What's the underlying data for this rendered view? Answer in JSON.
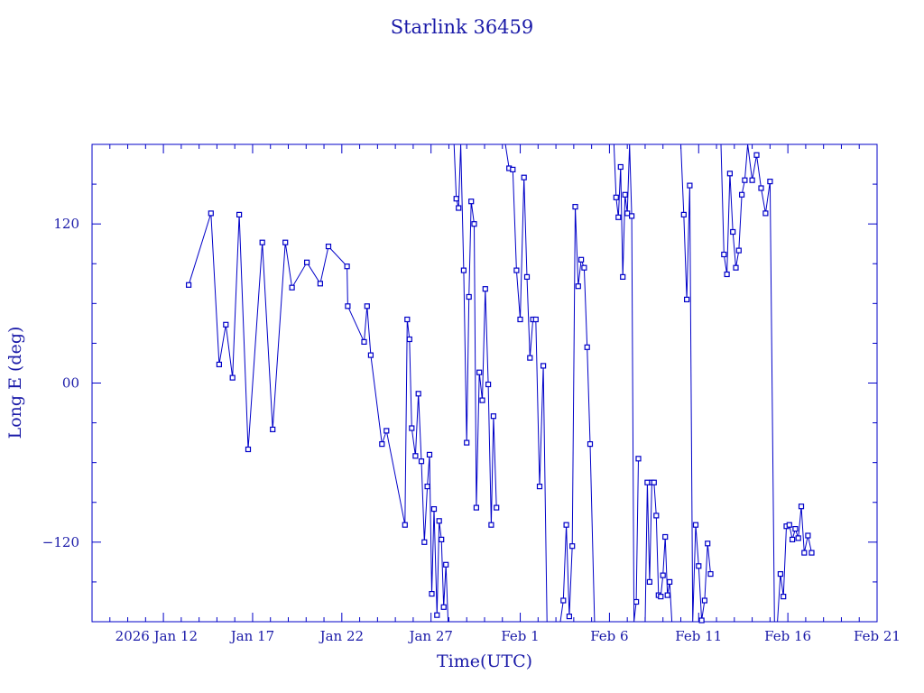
{
  "chart_data": {
    "type": "line",
    "title": "Starlink 36459",
    "xlabel": "Time(UTC)",
    "ylabel": "Long E (deg)",
    "xlim": [
      "2026-01-08",
      "2026-02-21"
    ],
    "ylim": [
      -180,
      180
    ],
    "x_tick_labels": [
      "2026 Jan 12",
      "Jan 17",
      "Jan 22",
      "Jan 27",
      "Feb  1",
      "Feb  6",
      "Feb 11",
      "Feb 16",
      "Feb 21"
    ],
    "y_tick_labels": [
      {
        "value": 120,
        "label": "120"
      },
      {
        "value": 0,
        "label": "00"
      },
      {
        "value": -120,
        "label": "−120"
      }
    ],
    "grid": false,
    "color": "#0000c8",
    "series": [
      {
        "x": [
          "2026-01-13 10:00",
          "2026-01-14 16:00",
          "2026-01-15 03:00",
          "2026-01-15 12:00",
          "2026-01-15 21:00",
          "2026-01-16 06:00",
          "2026-01-16 18:00",
          "2026-01-17 13:00",
          "2026-01-18 03:00",
          "2026-01-18 20:00",
          "2026-01-19 05:00",
          "2026-01-20 01:00",
          "2026-01-20 19:00",
          "2026-01-21 06:00",
          "2026-01-22 07:00",
          "2026-01-22 08:00",
          "2026-01-23 06:00",
          "2026-01-23 10:00",
          "2026-01-23 15:00",
          "2026-01-24 06:00",
          "2026-01-24 12:00",
          "2026-01-25 13:00",
          "2026-01-25 16:00",
          "2026-01-25 19:00",
          "2026-01-25 22:00",
          "2026-01-26 03:00",
          "2026-01-26 07:00",
          "2026-01-26 11:00",
          "2026-01-26 15:00",
          "2026-01-26 19:00",
          "2026-01-26 22:00",
          "2026-01-27 01:00",
          "2026-01-27 04:00",
          "2026-01-27 08:00",
          "2026-01-27 11:00",
          "2026-01-27 14:00",
          "2026-01-27 17:00",
          "2026-01-27 20:00",
          "2026-01-27 23:00"
        ],
        "y": [
          74,
          128,
          14,
          44,
          4,
          127,
          -50,
          106,
          -35,
          106,
          72,
          91,
          75,
          103,
          88,
          58,
          31,
          58,
          21,
          -46,
          -36,
          -107,
          48,
          33,
          -34,
          -55,
          -8,
          -59,
          -120,
          -78,
          -54,
          -159,
          -95,
          -175,
          -104,
          -118,
          -169,
          -137,
          -180
        ]
      },
      {
        "x": [
          "2026-01-28 07:00",
          "2026-01-28 10:00",
          "2026-01-28 13:00",
          "2026-01-28 16:00",
          "2026-01-28 20:00",
          "2026-01-29 00:00",
          "2026-01-29 03:00",
          "2026-01-29 06:00",
          "2026-01-29 10:00",
          "2026-01-29 13:00",
          "2026-01-29 17:00",
          "2026-01-29 21:00",
          "2026-01-30 01:00",
          "2026-01-30 05:00",
          "2026-01-30 09:00",
          "2026-01-30 12:00",
          "2026-01-30 16:00"
        ],
        "y": [
          180,
          139,
          132,
          180,
          85,
          -45,
          65,
          137,
          120,
          -94,
          8,
          -13,
          71,
          -1,
          -107,
          -25,
          -94
        ]
      },
      {
        "x": [
          "2026-01-31 04:00",
          "2026-01-31 09:00",
          "2026-01-31 14:00",
          "2026-01-31 19:00",
          "2026-02-01 00:00",
          "2026-02-01 05:00",
          "2026-02-01 09:00",
          "2026-02-01 13:00",
          "2026-02-01 17:00",
          "2026-02-01 21:00",
          "2026-02-02 02:00",
          "2026-02-02 07:00",
          "2026-02-02 12:00"
        ],
        "y": [
          180,
          162,
          161,
          85,
          48,
          155,
          80,
          19,
          48,
          48,
          -78,
          13,
          -180
        ]
      },
      {
        "x": [
          "2026-02-03 06:00",
          "2026-02-03 10:00",
          "2026-02-03 14:00",
          "2026-02-03 18:00",
          "2026-02-03 22:00",
          "2026-02-04 02:00",
          "2026-02-04 06:00",
          "2026-02-04 10:00",
          "2026-02-04 14:00",
          "2026-02-04 18:00",
          "2026-02-04 22:00",
          "2026-02-05 04:00"
        ],
        "y": [
          -180,
          -164,
          -107,
          -176,
          -123,
          133,
          73,
          93,
          87,
          27,
          -46,
          -180
        ]
      },
      {
        "x": [
          "2026-02-06 06:00",
          "2026-02-06 09:00",
          "2026-02-06 12:00",
          "2026-02-06 15:00",
          "2026-02-06 18:00",
          "2026-02-06 21:00",
          "2026-02-07 00:00",
          "2026-02-07 03:00",
          "2026-02-07 06:00",
          "2026-02-07 09:00",
          "2026-02-07 12:00",
          "2026-02-07 15:00"
        ],
        "y": [
          180,
          140,
          125,
          163,
          80,
          142,
          128,
          180,
          126,
          -180,
          -165,
          -57
        ]
      },
      {
        "x": [
          "2026-02-08 00:00",
          "2026-02-08 03:00",
          "2026-02-08 06:00",
          "2026-02-08 09:00",
          "2026-02-08 12:00",
          "2026-02-08 15:00",
          "2026-02-08 18:00",
          "2026-02-08 21:00",
          "2026-02-09 00:00",
          "2026-02-09 03:00",
          "2026-02-09 06:00",
          "2026-02-09 09:00",
          "2026-02-09 12:00",
          "2026-02-09 15:00"
        ],
        "y": [
          -180,
          -75,
          -150,
          -75,
          -75,
          -100,
          -160,
          -161,
          -145,
          -116,
          -160,
          -150,
          -180,
          -180
        ]
      },
      {
        "x": [
          "2026-02-10 00:00",
          "2026-02-10 04:00",
          "2026-02-10 08:00",
          "2026-02-10 12:00",
          "2026-02-10 16:00",
          "2026-02-10 20:00",
          "2026-02-11 00:00",
          "2026-02-11 04:00",
          "2026-02-11 08:00",
          "2026-02-11 12:00",
          "2026-02-11 16:00"
        ],
        "y": [
          180,
          127,
          63,
          149,
          -180,
          -107,
          -138,
          -179,
          -164,
          -121,
          -144
        ]
      },
      {
        "x": [
          "2026-02-12 06:00",
          "2026-02-12 10:00",
          "2026-02-12 14:00",
          "2026-02-12 18:00",
          "2026-02-12 22:00",
          "2026-02-13 02:00",
          "2026-02-13 06:00",
          "2026-02-13 10:00",
          "2026-02-13 14:00",
          "2026-02-13 18:00",
          "2026-02-14 00:00",
          "2026-02-14 06:00",
          "2026-02-14 12:00",
          "2026-02-14 18:00",
          "2026-02-15 00:00",
          "2026-02-15 06:00"
        ],
        "y": [
          180,
          97,
          82,
          158,
          114,
          87,
          100,
          142,
          153,
          180,
          153,
          172,
          147,
          128,
          152,
          -180
        ]
      },
      {
        "x": [
          "2026-02-15 10:00",
          "2026-02-15 14:00",
          "2026-02-15 18:00",
          "2026-02-15 22:00",
          "2026-02-16 02:00",
          "2026-02-16 06:00",
          "2026-02-16 10:00",
          "2026-02-16 14:00",
          "2026-02-16 18:00",
          "2026-02-16 22:00",
          "2026-02-17 03:00",
          "2026-02-17 08:00"
        ],
        "y": [
          -180,
          -144,
          -161,
          -108,
          -107,
          -118,
          -110,
          -117,
          -93,
          -128,
          -115,
          -128
        ]
      }
    ]
  }
}
